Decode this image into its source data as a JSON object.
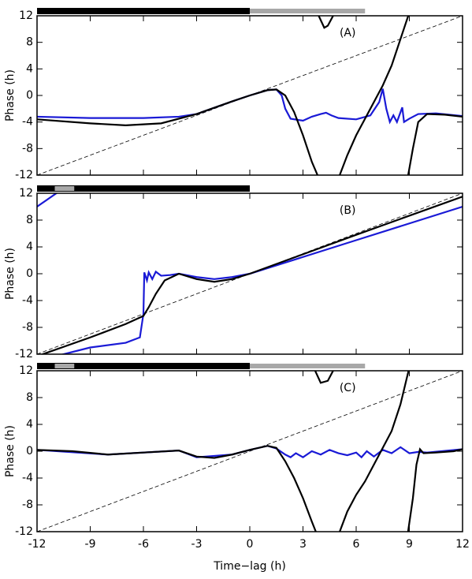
{
  "chart_data": [
    {
      "type": "line",
      "annotation": "(A)",
      "ylabel": "Phase (h)",
      "xlim": [
        -12,
        12
      ],
      "ylim": [
        -12,
        12
      ],
      "xticks": [
        -12,
        -9,
        -6,
        -3,
        0,
        3,
        6,
        9,
        12
      ],
      "yticks": [
        -12,
        -8,
        -4,
        0,
        4,
        8,
        12
      ],
      "top_bars": [
        {
          "start": -12,
          "end": 0,
          "color": "#000000"
        },
        {
          "start": 0,
          "end": 6.5,
          "color": "#a8a8a8"
        }
      ],
      "series": [
        {
          "color": "#000000",
          "dashed": true,
          "x": [
            -12,
            12
          ],
          "values": [
            -12,
            12
          ]
        },
        {
          "color": "#1a1ad6",
          "x": [
            -12,
            -9,
            -6,
            -4,
            -3,
            -1,
            0,
            1,
            1.5,
            1.8,
            2.0,
            2.3,
            3,
            3.5,
            4,
            4.3,
            4.6,
            5,
            6,
            6.8,
            7.3,
            7.5,
            7.7,
            7.9,
            8.1,
            8.3,
            8.6,
            8.7,
            9,
            9.5,
            10.5,
            12
          ],
          "values": [
            -3.2,
            -3.4,
            -3.4,
            -3.2,
            -2.8,
            -0.9,
            0,
            0.8,
            0.9,
            0,
            -2,
            -3.5,
            -3.8,
            -3.2,
            -2.8,
            -2.6,
            -3,
            -3.4,
            -3.6,
            -3,
            -1,
            1,
            -2,
            -4,
            -3,
            -4,
            -1.8,
            -4,
            -3.5,
            -2.8,
            -2.7,
            -3.1
          ]
        },
        {
          "color": "#000000",
          "x": [
            -12,
            -9,
            -7,
            -5,
            -3,
            -1,
            0,
            1,
            1.5,
            2,
            2.5,
            3,
            3.5,
            3.9,
            null,
            3.8,
            4.2,
            4.4,
            4.8,
            null,
            5,
            5.5,
            6,
            6.5,
            7,
            7.5,
            8,
            8.5,
            9,
            null,
            8.9,
            9.2,
            9.5,
            10,
            11,
            12
          ],
          "values": [
            -3.6,
            -4.2,
            -4.5,
            -4.2,
            -2.8,
            -0.9,
            0,
            0.8,
            0.9,
            0,
            -2.5,
            -6,
            -10,
            -12.5,
            null,
            12.5,
            10.2,
            10.5,
            12.5,
            null,
            -12.5,
            -9,
            -6,
            -3.5,
            -1,
            1.5,
            4.5,
            8.5,
            12.5,
            null,
            -12.5,
            -8,
            -4,
            -2.8,
            -2.9,
            -3.2
          ]
        }
      ]
    },
    {
      "type": "line",
      "annotation": "(B)",
      "ylabel": "Phase (h)",
      "xlim": [
        -12,
        12
      ],
      "ylim": [
        -12,
        12
      ],
      "xticks": [
        -12,
        -9,
        -6,
        -3,
        0,
        3,
        6,
        9,
        12
      ],
      "yticks": [
        -12,
        -8,
        -4,
        0,
        4,
        8,
        12
      ],
      "top_bars": [
        {
          "start": -12,
          "end": 0,
          "color": "#000000"
        },
        {
          "start": -11,
          "end": -9.9,
          "color": "#a8a8a8"
        }
      ],
      "series": [
        {
          "color": "#000000",
          "dashed": true,
          "x": [
            -12,
            12
          ],
          "values": [
            -12,
            12
          ]
        },
        {
          "color": "#1a1ad6",
          "x": [
            -12,
            -10.8,
            null,
            -10.8,
            -9,
            -7,
            -6.2,
            -6,
            -5.95,
            -5.8,
            -5.7,
            -5.5,
            -5.3,
            -5,
            -4.5,
            -4,
            -3,
            -2,
            -1,
            0,
            6,
            12
          ],
          "values": [
            10,
            12.2,
            null,
            -12.2,
            -11,
            -10.3,
            -9.5,
            -6,
            0.2,
            -1,
            0.2,
            -0.8,
            0.3,
            -0.3,
            -0.2,
            0,
            -0.5,
            -0.8,
            -0.5,
            0,
            5,
            10
          ]
        },
        {
          "color": "#000000",
          "x": [
            -12,
            -9,
            -7,
            -6,
            -5.7,
            -5.3,
            -4.8,
            -4,
            -3,
            -2,
            -1,
            0,
            6,
            12
          ],
          "values": [
            -12.3,
            -9.5,
            -7.5,
            -6.3,
            -5,
            -3,
            -1,
            0,
            -0.8,
            -1.2,
            -0.8,
            0,
            5.8,
            11.5
          ]
        }
      ]
    },
    {
      "type": "line",
      "annotation": "(C)",
      "ylabel": "Phase (h)",
      "xlabel": "Time−lag (h)",
      "xlim": [
        -12,
        12
      ],
      "ylim": [
        -12,
        12
      ],
      "xticks": [
        -12,
        -9,
        -6,
        -3,
        0,
        3,
        6,
        9,
        12
      ],
      "yticks": [
        -12,
        -8,
        -4,
        0,
        4,
        8,
        12
      ],
      "top_bars": [
        {
          "start": -12,
          "end": 0,
          "color": "#000000"
        },
        {
          "start": -11,
          "end": -9.9,
          "color": "#a8a8a8"
        },
        {
          "start": 0,
          "end": 6.5,
          "color": "#a8a8a8"
        }
      ],
      "series": [
        {
          "color": "#000000",
          "dashed": true,
          "x": [
            -12,
            12
          ],
          "values": [
            -12,
            12
          ]
        },
        {
          "color": "#1a1ad6",
          "x": [
            -12,
            -8,
            -4,
            -3,
            -1,
            0,
            1,
            1.5,
            2,
            2.3,
            2.6,
            3,
            3.5,
            4,
            4.5,
            5,
            5.5,
            6,
            6.3,
            6.6,
            7,
            7.5,
            8,
            8.5,
            9,
            9.5,
            10,
            12
          ],
          "values": [
            0.2,
            -0.5,
            0.1,
            -0.9,
            -0.5,
            0.2,
            0.8,
            0.4,
            -0.5,
            -0.9,
            -0.3,
            -0.9,
            0,
            -0.5,
            0.2,
            -0.3,
            -0.6,
            -0.2,
            -0.9,
            0,
            -0.8,
            0.2,
            -0.3,
            0.6,
            -0.3,
            -0.1,
            -0.2,
            0.3
          ]
        },
        {
          "color": "#000000",
          "x": [
            -12,
            -10,
            -8,
            -6,
            -4,
            -3,
            -2,
            -1,
            0,
            1,
            1.5,
            2,
            2.5,
            3,
            3.5,
            3.8,
            null,
            3.6,
            4,
            4.4,
            4.8,
            null,
            5,
            5.5,
            6,
            6.5,
            7,
            7.5,
            8,
            8.5,
            9,
            null,
            8.9,
            9.2,
            9.4,
            9.6,
            9.8,
            10.5,
            11.5,
            12
          ],
          "values": [
            0.2,
            0,
            -0.5,
            -0.2,
            0.1,
            -0.8,
            -1,
            -0.5,
            0.2,
            0.8,
            0.5,
            -1.5,
            -4,
            -7,
            -10.5,
            -12.5,
            null,
            12.5,
            10.2,
            10.5,
            12.5,
            null,
            -12.5,
            -9,
            -6.5,
            -4.5,
            -2,
            0.5,
            3,
            7,
            12.5,
            null,
            -12.5,
            -7,
            -2,
            0.3,
            -0.3,
            -0.2,
            0,
            0.3
          ]
        }
      ]
    }
  ]
}
